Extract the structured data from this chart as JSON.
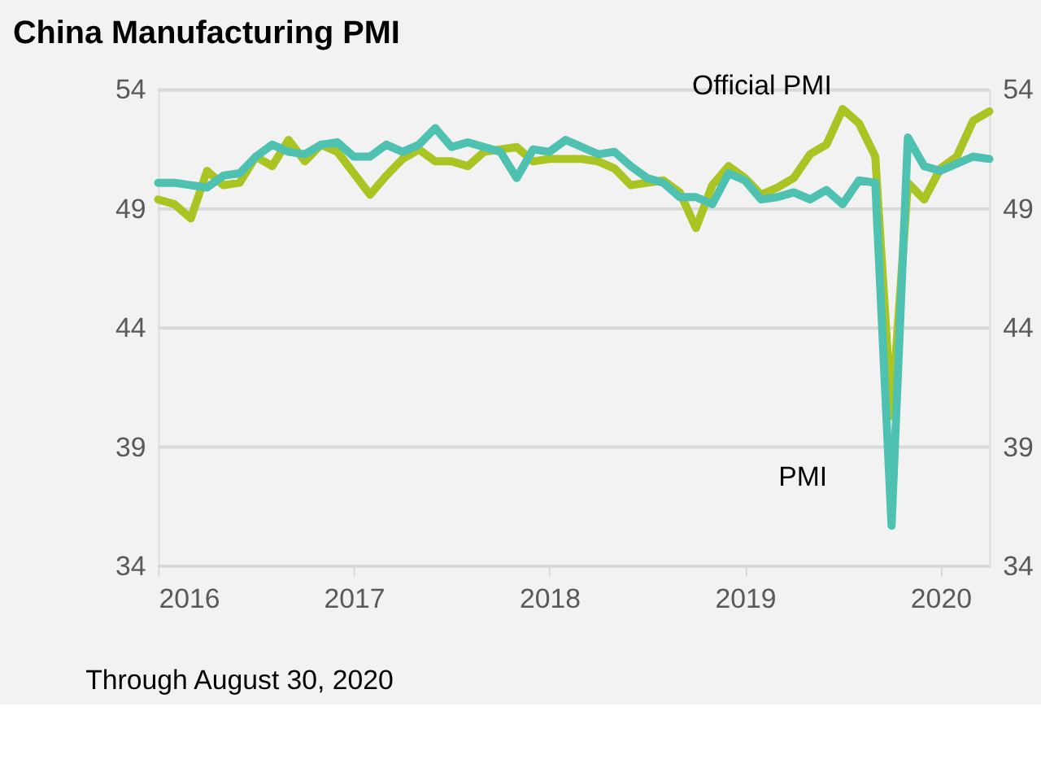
{
  "chart_data": {
    "type": "line",
    "title": "China Manufacturing PMI",
    "annotations": [
      "Through August 30, 2020"
    ],
    "x": [
      2016.0,
      2016.0833,
      2016.1667,
      2016.25,
      2016.3333,
      2016.4167,
      2016.5,
      2016.5833,
      2016.6667,
      2016.75,
      2016.8333,
      2016.9167,
      2017.0,
      2017.0833,
      2017.1667,
      2017.25,
      2017.3333,
      2017.4167,
      2017.5,
      2017.5833,
      2017.6667,
      2017.75,
      2017.8333,
      2017.9167,
      2018.0,
      2018.0833,
      2018.1667,
      2018.25,
      2018.3333,
      2018.4167,
      2018.5,
      2018.5833,
      2018.6667,
      2018.75,
      2018.8333,
      2018.9167,
      2019.0,
      2019.0833,
      2019.1667,
      2019.25,
      2019.3333,
      2019.4167,
      2019.5,
      2019.5833,
      2019.6667,
      2019.75,
      2019.8333,
      2019.9167,
      2020.0,
      2020.0833,
      2020.1667,
      2020.25
    ],
    "series": [
      {
        "name": "Official PMI",
        "color": "#aac523",
        "values": [
          49.4,
          49.2,
          48.6,
          50.6,
          50.0,
          50.1,
          51.2,
          50.8,
          51.9,
          51.0,
          51.7,
          51.4,
          50.5,
          49.6,
          50.4,
          51.1,
          51.5,
          51.0,
          51.0,
          50.8,
          51.4,
          51.5,
          51.6,
          51.0,
          51.1,
          51.1,
          51.1,
          51.0,
          50.7,
          50.0,
          50.1,
          50.2,
          49.7,
          48.2,
          50.0,
          50.8,
          50.3,
          49.6,
          49.9,
          50.3,
          51.3,
          51.7,
          53.2,
          52.6,
          51.2,
          40.3,
          50.1,
          49.4,
          50.7,
          51.2,
          52.7,
          53.1
        ]
      },
      {
        "name": "PMI",
        "color": "#4fc1b0",
        "values": [
          50.1,
          50.1,
          50.0,
          49.9,
          50.4,
          50.5,
          51.2,
          51.7,
          51.4,
          51.3,
          51.7,
          51.8,
          51.2,
          51.2,
          51.7,
          51.4,
          51.7,
          52.4,
          51.6,
          51.8,
          51.6,
          51.4,
          50.3,
          51.5,
          51.4,
          51.9,
          51.6,
          51.3,
          51.4,
          50.8,
          50.3,
          50.1,
          49.5,
          49.5,
          49.2,
          50.5,
          50.2,
          49.4,
          49.5,
          49.7,
          49.4,
          49.8,
          49.2,
          50.2,
          50.1,
          35.7,
          52.0,
          50.8,
          50.6,
          50.9,
          51.2,
          51.1
        ]
      }
    ],
    "xlim": [
      2016,
      2020.25
    ],
    "xticks": [
      2016,
      2017,
      2018,
      2019,
      2020
    ],
    "ylim": [
      34,
      54
    ],
    "yticks": [
      34,
      39,
      44,
      49,
      54
    ],
    "y2lim": [
      34,
      54
    ],
    "y2ticks": [
      34,
      39,
      44,
      49,
      54
    ],
    "grid": "y",
    "marker": "none",
    "line_style": "solid"
  }
}
